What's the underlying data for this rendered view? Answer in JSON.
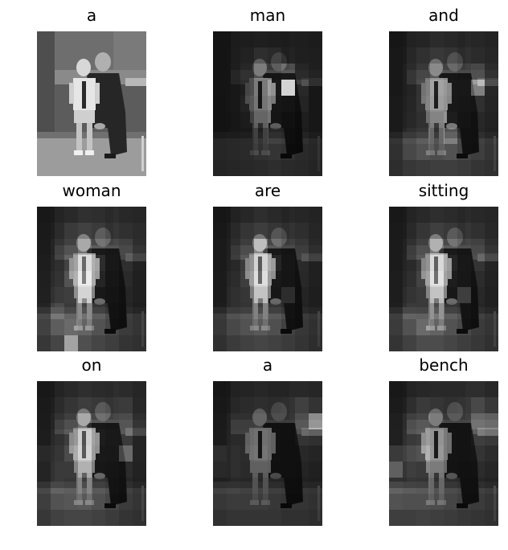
{
  "figure": {
    "panels": [
      {
        "word": "a",
        "attention": [],
        "baseline": 1.0
      },
      {
        "word": "man",
        "attention": [
          [
            0.05,
            0.05,
            0.06,
            0.08,
            0.06,
            0.05,
            0.04,
            0.03
          ],
          [
            0.05,
            0.06,
            0.1,
            0.2,
            0.16,
            0.08,
            0.05,
            0.04
          ],
          [
            0.05,
            0.07,
            0.14,
            0.34,
            0.3,
            0.4,
            0.1,
            0.05
          ],
          [
            0.05,
            0.06,
            0.12,
            0.3,
            0.45,
            0.95,
            0.22,
            0.05
          ],
          [
            0.04,
            0.06,
            0.16,
            0.28,
            0.35,
            0.3,
            0.18,
            0.05
          ],
          [
            0.04,
            0.05,
            0.1,
            0.26,
            0.32,
            0.22,
            0.12,
            0.05
          ],
          [
            0.04,
            0.05,
            0.06,
            0.12,
            0.2,
            0.16,
            0.1,
            0.05
          ],
          [
            0.04,
            0.05,
            0.06,
            0.1,
            0.12,
            0.1,
            0.06,
            0.04
          ],
          [
            0.03,
            0.04,
            0.05,
            0.06,
            0.08,
            0.06,
            0.05,
            0.03
          ]
        ],
        "baseline": 0.0
      },
      {
        "word": "and",
        "attention": [
          [
            0.08,
            0.1,
            0.12,
            0.18,
            0.15,
            0.12,
            0.1,
            0.08
          ],
          [
            0.1,
            0.14,
            0.22,
            0.28,
            0.24,
            0.18,
            0.14,
            0.1
          ],
          [
            0.1,
            0.18,
            0.28,
            0.4,
            0.36,
            0.3,
            0.35,
            0.14
          ],
          [
            0.1,
            0.18,
            0.32,
            0.46,
            0.42,
            0.4,
            0.62,
            0.2
          ],
          [
            0.12,
            0.2,
            0.34,
            0.44,
            0.4,
            0.36,
            0.3,
            0.18
          ],
          [
            0.12,
            0.22,
            0.3,
            0.4,
            0.46,
            0.3,
            0.22,
            0.16
          ],
          [
            0.12,
            0.28,
            0.36,
            0.3,
            0.5,
            0.24,
            0.2,
            0.14
          ],
          [
            0.1,
            0.24,
            0.3,
            0.26,
            0.3,
            0.22,
            0.18,
            0.12
          ],
          [
            0.08,
            0.14,
            0.16,
            0.18,
            0.18,
            0.16,
            0.12,
            0.1
          ]
        ],
        "baseline": 0.0
      },
      {
        "word": "woman",
        "attention": [
          [
            0.1,
            0.12,
            0.16,
            0.22,
            0.2,
            0.16,
            0.12,
            0.1
          ],
          [
            0.12,
            0.18,
            0.3,
            0.36,
            0.3,
            0.22,
            0.18,
            0.14
          ],
          [
            0.14,
            0.24,
            0.36,
            0.5,
            0.42,
            0.36,
            0.3,
            0.16
          ],
          [
            0.16,
            0.28,
            0.46,
            0.64,
            0.5,
            0.4,
            0.28,
            0.16
          ],
          [
            0.18,
            0.32,
            0.5,
            0.7,
            0.48,
            0.36,
            0.24,
            0.14
          ],
          [
            0.2,
            0.4,
            0.44,
            0.66,
            0.4,
            0.3,
            0.2,
            0.14
          ],
          [
            0.24,
            0.48,
            0.4,
            0.46,
            0.36,
            0.26,
            0.18,
            0.12
          ],
          [
            0.2,
            0.36,
            0.44,
            0.4,
            0.3,
            0.22,
            0.16,
            0.12
          ],
          [
            0.14,
            0.22,
            0.6,
            0.28,
            0.22,
            0.18,
            0.12,
            0.1
          ]
        ],
        "baseline": 0.0
      },
      {
        "word": "are",
        "attention": [
          [
            0.08,
            0.1,
            0.14,
            0.2,
            0.16,
            0.12,
            0.1,
            0.08
          ],
          [
            0.1,
            0.16,
            0.26,
            0.32,
            0.26,
            0.2,
            0.16,
            0.1
          ],
          [
            0.12,
            0.2,
            0.32,
            0.56,
            0.4,
            0.3,
            0.22,
            0.12
          ],
          [
            0.12,
            0.22,
            0.4,
            0.6,
            0.48,
            0.36,
            0.24,
            0.14
          ],
          [
            0.14,
            0.26,
            0.44,
            0.64,
            0.44,
            0.32,
            0.22,
            0.14
          ],
          [
            0.14,
            0.3,
            0.36,
            0.6,
            0.38,
            0.5,
            0.18,
            0.12
          ],
          [
            0.16,
            0.3,
            0.34,
            0.42,
            0.34,
            0.26,
            0.16,
            0.12
          ],
          [
            0.14,
            0.24,
            0.3,
            0.34,
            0.28,
            0.2,
            0.14,
            0.1
          ],
          [
            0.1,
            0.16,
            0.2,
            0.22,
            0.2,
            0.16,
            0.12,
            0.08
          ]
        ],
        "baseline": 0.0
      },
      {
        "word": "sitting",
        "attention": [
          [
            0.1,
            0.12,
            0.16,
            0.2,
            0.18,
            0.14,
            0.12,
            0.1
          ],
          [
            0.12,
            0.16,
            0.26,
            0.34,
            0.28,
            0.22,
            0.18,
            0.12
          ],
          [
            0.14,
            0.22,
            0.34,
            0.52,
            0.42,
            0.34,
            0.3,
            0.16
          ],
          [
            0.14,
            0.24,
            0.4,
            0.62,
            0.48,
            0.4,
            0.34,
            0.18
          ],
          [
            0.16,
            0.28,
            0.46,
            0.66,
            0.46,
            0.38,
            0.26,
            0.16
          ],
          [
            0.16,
            0.34,
            0.4,
            0.6,
            0.4,
            0.54,
            0.22,
            0.14
          ],
          [
            0.18,
            0.4,
            0.38,
            0.48,
            0.36,
            0.3,
            0.2,
            0.14
          ],
          [
            0.16,
            0.3,
            0.44,
            0.4,
            0.3,
            0.24,
            0.16,
            0.12
          ],
          [
            0.12,
            0.2,
            0.26,
            0.26,
            0.22,
            0.18,
            0.14,
            0.1
          ]
        ],
        "baseline": 0.0
      },
      {
        "word": "on",
        "attention": [
          [
            0.1,
            0.12,
            0.16,
            0.2,
            0.18,
            0.16,
            0.14,
            0.1
          ],
          [
            0.12,
            0.18,
            0.26,
            0.32,
            0.28,
            0.24,
            0.26,
            0.12
          ],
          [
            0.14,
            0.24,
            0.34,
            0.5,
            0.4,
            0.36,
            0.38,
            0.16
          ],
          [
            0.16,
            0.3,
            0.42,
            0.58,
            0.46,
            0.42,
            0.4,
            0.18
          ],
          [
            0.3,
            0.36,
            0.48,
            0.6,
            0.44,
            0.4,
            0.56,
            0.18
          ],
          [
            0.24,
            0.4,
            0.4,
            0.54,
            0.38,
            0.34,
            0.26,
            0.16
          ],
          [
            0.24,
            0.4,
            0.36,
            0.44,
            0.34,
            0.28,
            0.2,
            0.14
          ],
          [
            0.18,
            0.3,
            0.32,
            0.34,
            0.28,
            0.22,
            0.16,
            0.12
          ],
          [
            0.14,
            0.2,
            0.22,
            0.22,
            0.2,
            0.16,
            0.12,
            0.1
          ]
        ],
        "baseline": 0.0
      },
      {
        "word": "a",
        "attention": [
          [
            0.08,
            0.1,
            0.12,
            0.14,
            0.12,
            0.12,
            0.12,
            0.1
          ],
          [
            0.1,
            0.14,
            0.18,
            0.2,
            0.18,
            0.2,
            0.3,
            0.2
          ],
          [
            0.12,
            0.22,
            0.22,
            0.24,
            0.22,
            0.22,
            0.4,
            0.6
          ],
          [
            0.14,
            0.24,
            0.24,
            0.26,
            0.24,
            0.22,
            0.34,
            0.3
          ],
          [
            0.36,
            0.28,
            0.26,
            0.28,
            0.24,
            0.22,
            0.22,
            0.18
          ],
          [
            0.3,
            0.28,
            0.24,
            0.24,
            0.22,
            0.2,
            0.18,
            0.14
          ],
          [
            0.2,
            0.22,
            0.2,
            0.2,
            0.18,
            0.16,
            0.14,
            0.12
          ],
          [
            0.14,
            0.16,
            0.16,
            0.16,
            0.14,
            0.12,
            0.12,
            0.1
          ],
          [
            0.1,
            0.12,
            0.12,
            0.12,
            0.12,
            0.1,
            0.1,
            0.08
          ]
        ],
        "baseline": 0.0
      },
      {
        "word": "bench",
        "attention": [
          [
            0.1,
            0.12,
            0.14,
            0.16,
            0.16,
            0.16,
            0.16,
            0.12
          ],
          [
            0.14,
            0.2,
            0.3,
            0.26,
            0.22,
            0.24,
            0.36,
            0.24
          ],
          [
            0.18,
            0.34,
            0.4,
            0.34,
            0.28,
            0.28,
            0.5,
            0.48
          ],
          [
            0.2,
            0.38,
            0.44,
            0.4,
            0.3,
            0.28,
            0.44,
            0.38
          ],
          [
            0.46,
            0.48,
            0.5,
            0.42,
            0.3,
            0.28,
            0.34,
            0.26
          ],
          [
            0.56,
            0.44,
            0.4,
            0.36,
            0.28,
            0.24,
            0.26,
            0.2
          ],
          [
            0.4,
            0.36,
            0.34,
            0.3,
            0.26,
            0.22,
            0.2,
            0.16
          ],
          [
            0.3,
            0.28,
            0.28,
            0.26,
            0.22,
            0.18,
            0.16,
            0.12
          ],
          [
            0.18,
            0.18,
            0.2,
            0.18,
            0.16,
            0.14,
            0.12,
            0.1
          ]
        ],
        "baseline": 0.0
      }
    ]
  }
}
